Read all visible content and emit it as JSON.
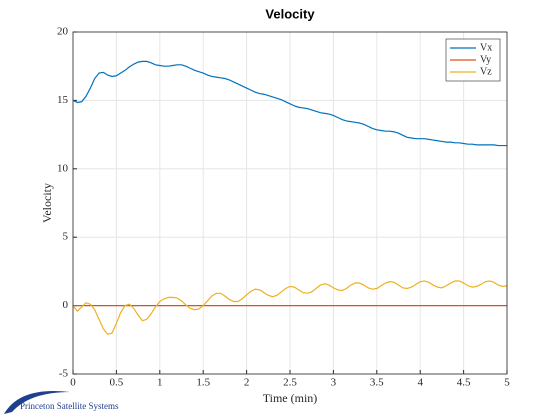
{
  "chart_data": {
    "type": "line",
    "title": "Velocity",
    "xlabel": "Time (min)",
    "ylabel": "Velocity",
    "logo_text": "Princeton Satellite Systems",
    "xlim": [
      0,
      5
    ],
    "ylim": [
      -5,
      20
    ],
    "xticks": [
      0,
      0.5,
      1,
      1.5,
      2,
      2.5,
      3,
      3.5,
      4,
      4.5,
      5
    ],
    "yticks": [
      -5,
      0,
      5,
      10,
      15,
      20
    ],
    "grid": true,
    "legend": "northeast",
    "x": [
      0,
      0.05,
      0.1,
      0.15,
      0.2,
      0.25,
      0.3,
      0.35,
      0.4,
      0.45,
      0.5,
      0.55,
      0.6,
      0.65,
      0.7,
      0.75,
      0.8,
      0.85,
      0.9,
      0.95,
      1,
      1.05,
      1.1,
      1.15,
      1.2,
      1.25,
      1.3,
      1.35,
      1.4,
      1.45,
      1.5,
      1.55,
      1.6,
      1.65,
      1.7,
      1.75,
      1.8,
      1.85,
      1.9,
      1.95,
      2,
      2.05,
      2.1,
      2.15,
      2.2,
      2.25,
      2.3,
      2.35,
      2.4,
      2.45,
      2.5,
      2.55,
      2.6,
      2.65,
      2.7,
      2.75,
      2.8,
      2.85,
      2.9,
      2.95,
      3,
      3.05,
      3.1,
      3.15,
      3.2,
      3.25,
      3.3,
      3.35,
      3.4,
      3.45,
      3.5,
      3.55,
      3.6,
      3.65,
      3.7,
      3.75,
      3.8,
      3.85,
      3.9,
      3.95,
      4,
      4.05,
      4.1,
      4.15,
      4.2,
      4.25,
      4.3,
      4.35,
      4.4,
      4.45,
      4.5,
      4.55,
      4.6,
      4.65,
      4.7,
      4.75,
      4.8,
      4.85,
      4.9,
      4.95,
      5
    ],
    "series": [
      {
        "name": "Vx",
        "color": "#0072bd",
        "values": [
          15.0,
          14.85,
          14.9,
          15.3,
          15.9,
          16.6,
          17.0,
          17.05,
          16.85,
          16.75,
          16.8,
          17.0,
          17.2,
          17.45,
          17.65,
          17.8,
          17.85,
          17.85,
          17.75,
          17.6,
          17.55,
          17.5,
          17.5,
          17.55,
          17.6,
          17.6,
          17.5,
          17.35,
          17.2,
          17.1,
          17.0,
          16.85,
          16.75,
          16.7,
          16.65,
          16.6,
          16.5,
          16.35,
          16.2,
          16.05,
          15.9,
          15.75,
          15.6,
          15.5,
          15.45,
          15.35,
          15.25,
          15.15,
          15.05,
          14.9,
          14.75,
          14.6,
          14.5,
          14.45,
          14.4,
          14.3,
          14.2,
          14.1,
          14.05,
          14.0,
          13.9,
          13.75,
          13.6,
          13.5,
          13.45,
          13.4,
          13.35,
          13.25,
          13.1,
          12.95,
          12.85,
          12.8,
          12.75,
          12.75,
          12.7,
          12.6,
          12.45,
          12.3,
          12.25,
          12.2,
          12.2,
          12.2,
          12.15,
          12.1,
          12.05,
          12.0,
          11.95,
          11.95,
          11.9,
          11.9,
          11.85,
          11.8,
          11.8,
          11.75,
          11.75,
          11.75,
          11.75,
          11.75,
          11.7,
          11.7,
          11.7
        ]
      },
      {
        "name": "Vy",
        "color": "#d95319",
        "values": [
          0,
          0,
          0,
          0,
          0,
          0,
          0,
          0,
          0,
          0,
          0,
          0,
          0,
          0,
          0,
          0,
          0,
          0,
          0,
          0,
          0,
          0,
          0,
          0,
          0,
          0,
          0,
          0,
          0,
          0,
          0,
          0,
          0,
          0,
          0,
          0,
          0,
          0,
          0,
          0,
          0,
          0,
          0,
          0,
          0,
          0,
          0,
          0,
          0,
          0,
          0,
          0,
          0,
          0,
          0,
          0,
          0,
          0,
          0,
          0,
          0,
          0,
          0,
          0,
          0,
          0,
          0,
          0,
          0,
          0,
          0,
          0,
          0,
          0,
          0,
          0,
          0,
          0,
          0,
          0,
          0,
          0,
          0,
          0,
          0,
          0,
          0,
          0,
          0,
          0,
          0,
          0,
          0,
          0,
          0,
          0,
          0,
          0,
          0,
          0,
          0
        ]
      },
      {
        "name": "Vz",
        "color": "#edb120",
        "values": [
          0,
          -0.4,
          -0.1,
          0.2,
          0.1,
          -0.3,
          -1.0,
          -1.7,
          -2.1,
          -2.0,
          -1.3,
          -0.5,
          0.0,
          0.1,
          -0.2,
          -0.7,
          -1.1,
          -1.0,
          -0.6,
          -0.1,
          0.3,
          0.5,
          0.6,
          0.6,
          0.55,
          0.35,
          0.05,
          -0.2,
          -0.3,
          -0.25,
          0.0,
          0.35,
          0.7,
          0.9,
          0.9,
          0.7,
          0.45,
          0.3,
          0.3,
          0.5,
          0.8,
          1.05,
          1.2,
          1.15,
          0.95,
          0.75,
          0.65,
          0.75,
          1.0,
          1.25,
          1.4,
          1.35,
          1.15,
          0.95,
          0.9,
          1.0,
          1.25,
          1.5,
          1.6,
          1.5,
          1.3,
          1.15,
          1.1,
          1.25,
          1.5,
          1.65,
          1.65,
          1.5,
          1.3,
          1.2,
          1.25,
          1.45,
          1.65,
          1.75,
          1.7,
          1.5,
          1.3,
          1.25,
          1.35,
          1.55,
          1.75,
          1.8,
          1.7,
          1.5,
          1.35,
          1.3,
          1.45,
          1.65,
          1.8,
          1.8,
          1.65,
          1.45,
          1.35,
          1.4,
          1.55,
          1.75,
          1.8,
          1.7,
          1.5,
          1.4,
          1.45
        ]
      }
    ]
  }
}
